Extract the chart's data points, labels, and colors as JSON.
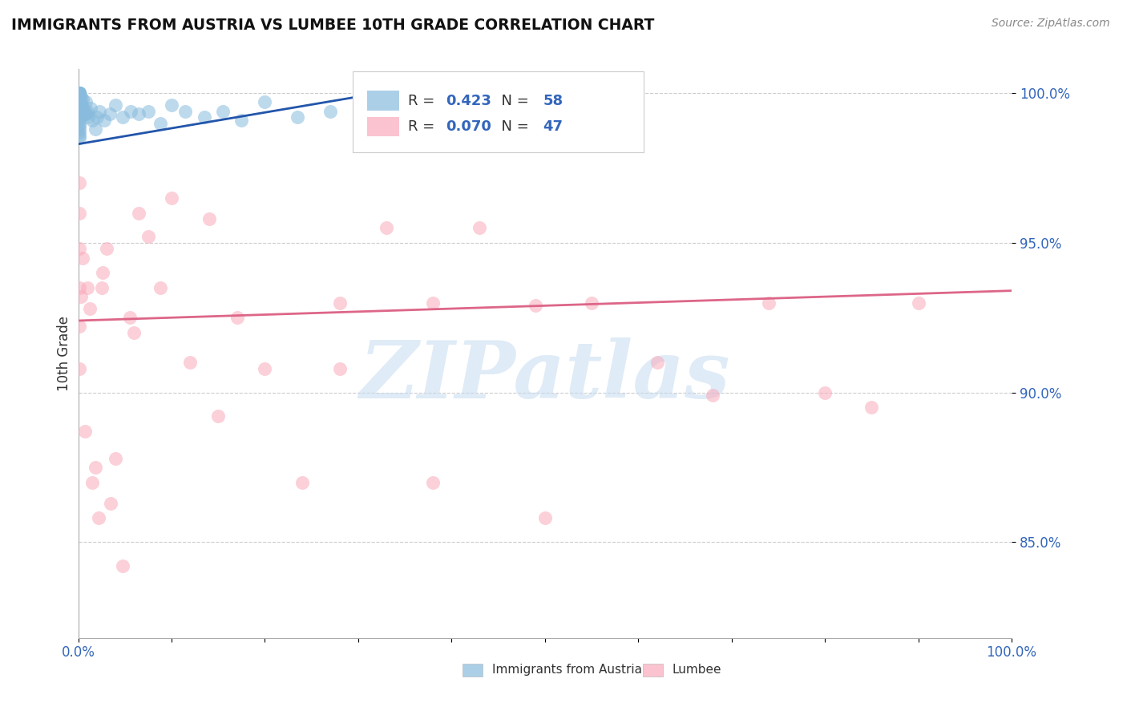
{
  "title": "IMMIGRANTS FROM AUSTRIA VS LUMBEE 10TH GRADE CORRELATION CHART",
  "source": "Source: ZipAtlas.com",
  "ylabel": "10th Grade",
  "xmin": 0.0,
  "xmax": 1.0,
  "ymin": 0.818,
  "ymax": 1.008,
  "y_ticks": [
    0.85,
    0.9,
    0.95,
    1.0
  ],
  "y_tick_labels": [
    "85.0%",
    "90.0%",
    "95.0%",
    "100.0%"
  ],
  "legend_r1_label": "R = ",
  "legend_r1_val": "0.423",
  "legend_n1_label": "N = ",
  "legend_n1_val": "58",
  "legend_r2_label": "R = ",
  "legend_r2_val": "0.070",
  "legend_n2_label": "N = ",
  "legend_n2_val": "47",
  "legend_label1": "Immigrants from Austria",
  "legend_label2": "Lumbee",
  "blue_color": "#88BBDD",
  "pink_color": "#F9AABB",
  "trendline_blue": "#2255AA",
  "trendline_pink": "#DD6688",
  "watermark_text": "ZIPatlas",
  "watermark_color": "#C5DCF0",
  "blue_scatter_x": [
    0.001,
    0.001,
    0.001,
    0.001,
    0.001,
    0.001,
    0.001,
    0.001,
    0.001,
    0.001,
    0.001,
    0.001,
    0.001,
    0.001,
    0.001,
    0.001,
    0.001,
    0.001,
    0.001,
    0.001,
    0.001,
    0.001,
    0.001,
    0.001,
    0.001,
    0.003,
    0.003,
    0.004,
    0.005,
    0.006,
    0.007,
    0.008,
    0.009,
    0.01,
    0.011,
    0.013,
    0.015,
    0.018,
    0.02,
    0.023,
    0.028,
    0.034,
    0.04,
    0.048,
    0.056,
    0.065,
    0.075,
    0.088,
    0.1,
    0.115,
    0.135,
    0.155,
    0.175,
    0.2,
    0.235,
    0.27,
    0.31,
    0.36
  ],
  "blue_scatter_y": [
    1.0,
    1.0,
    1.0,
    1.0,
    1.0,
    1.0,
    0.999,
    0.999,
    0.998,
    0.998,
    0.997,
    0.997,
    0.996,
    0.996,
    0.995,
    0.994,
    0.993,
    0.992,
    0.991,
    0.99,
    0.989,
    0.988,
    0.987,
    0.986,
    0.985,
    0.999,
    0.997,
    0.996,
    0.998,
    0.994,
    0.993,
    0.997,
    0.993,
    0.994,
    0.992,
    0.995,
    0.991,
    0.988,
    0.992,
    0.994,
    0.991,
    0.993,
    0.996,
    0.992,
    0.994,
    0.993,
    0.994,
    0.99,
    0.996,
    0.994,
    0.992,
    0.994,
    0.991,
    0.997,
    0.992,
    0.994,
    0.991,
    0.997
  ],
  "pink_scatter_x": [
    0.001,
    0.001,
    0.001,
    0.001,
    0.001,
    0.001,
    0.003,
    0.005,
    0.007,
    0.01,
    0.012,
    0.015,
    0.018,
    0.022,
    0.026,
    0.03,
    0.035,
    0.04,
    0.048,
    0.055,
    0.065,
    0.075,
    0.088,
    0.1,
    0.12,
    0.14,
    0.17,
    0.2,
    0.24,
    0.28,
    0.33,
    0.38,
    0.43,
    0.49,
    0.55,
    0.62,
    0.68,
    0.74,
    0.8,
    0.85,
    0.9,
    0.38,
    0.5,
    0.28,
    0.15,
    0.06,
    0.025
  ],
  "pink_scatter_y": [
    0.935,
    0.96,
    0.948,
    0.922,
    0.908,
    0.97,
    0.932,
    0.945,
    0.887,
    0.935,
    0.928,
    0.87,
    0.875,
    0.858,
    0.94,
    0.948,
    0.863,
    0.878,
    0.842,
    0.925,
    0.96,
    0.952,
    0.935,
    0.965,
    0.91,
    0.958,
    0.925,
    0.908,
    0.87,
    0.93,
    0.955,
    0.93,
    0.955,
    0.929,
    0.93,
    0.91,
    0.899,
    0.93,
    0.9,
    0.895,
    0.93,
    0.87,
    0.858,
    0.908,
    0.892,
    0.92,
    0.935
  ],
  "blue_trend_x": [
    0.0,
    0.36
  ],
  "blue_trend_y": [
    0.983,
    1.002
  ],
  "pink_trend_x": [
    0.0,
    1.0
  ],
  "pink_trend_y": [
    0.924,
    0.934
  ],
  "grid_color": "#CCCCCC",
  "background_color": "#FFFFFF",
  "text_blue": "#3366BB",
  "text_black": "#333333"
}
